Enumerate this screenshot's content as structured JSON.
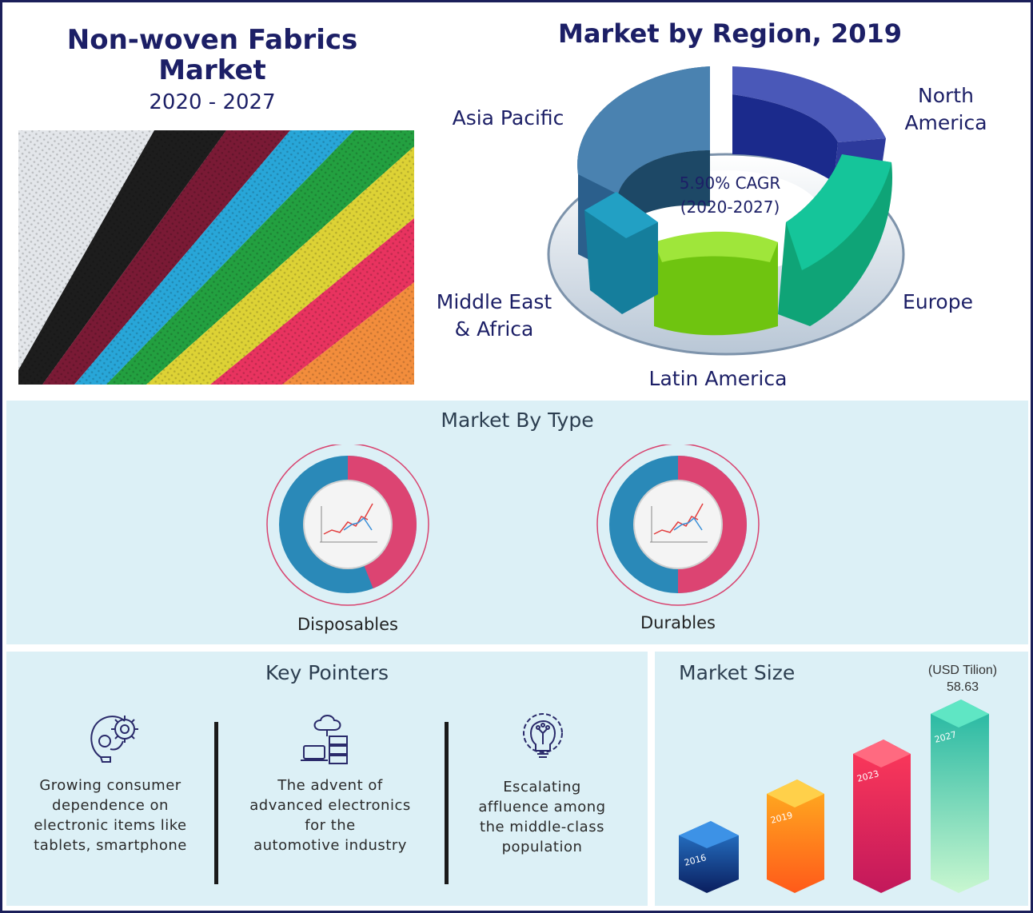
{
  "header": {
    "title_line1": "Non-woven Fabrics",
    "title_line2": "Market",
    "years": "2020 - 2027"
  },
  "region": {
    "title": "Market by Region, 2019",
    "cagr_line1": "5.90% CAGR",
    "cagr_line2": "(2020-2027)",
    "labels": {
      "north_america_1": "North",
      "north_america_2": "America",
      "asia_pacific": "Asia Pacific",
      "europe": "Europe",
      "middle_east_1": "Middle East",
      "middle_east_2": "& Africa",
      "latin_america": "Latin America"
    }
  },
  "type": {
    "title": "Market By Type",
    "items": [
      {
        "label": "Disposables",
        "pink_share": 0.44
      },
      {
        "label": "Durables",
        "pink_share": 0.5
      }
    ]
  },
  "pointers": {
    "title": "Key Pointers",
    "items": [
      {
        "icon": "gear-brain-icon",
        "text_lines": [
          "Growing consumer",
          "dependence on",
          "electronic items like",
          "tablets, smartphone"
        ]
      },
      {
        "icon": "cloud-server-icon",
        "text_lines": [
          "The advent of",
          "advanced electronics",
          "for the",
          "automotive industry"
        ]
      },
      {
        "icon": "gear-lightbulb-icon",
        "text_lines": [
          "Escalating",
          "affluence among",
          "the middle-class",
          "population"
        ]
      }
    ]
  },
  "chart_data": [
    {
      "type": "pie",
      "title": "Market by Region, 2019",
      "categories": [
        "North America",
        "Europe",
        "Latin America",
        "Middle East & Africa",
        "Asia Pacific"
      ],
      "colors": [
        "#1b2a8c",
        "#10b98a",
        "#7ed321",
        "#1b8fb0",
        "#2b5f8c"
      ],
      "annotation": "5.90% CAGR (2020-2027)"
    },
    {
      "type": "bar",
      "title": "Market Size",
      "unit_label": "(USD Tilion)",
      "categories": [
        "2016",
        "2019",
        "2023",
        "2027"
      ],
      "values": [
        null,
        null,
        null,
        58.63
      ],
      "value_label": "58.63"
    }
  ]
}
